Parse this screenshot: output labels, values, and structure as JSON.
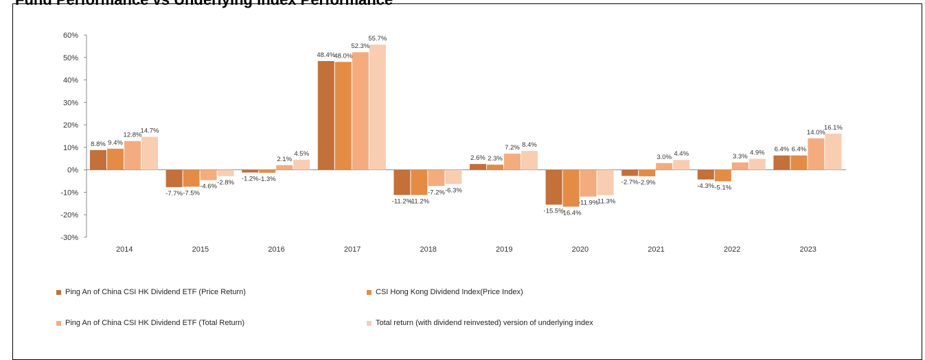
{
  "page": {
    "title": "Fund Performance vs Underlying Index Performance"
  },
  "chart_data": {
    "type": "bar",
    "categories": [
      "2014",
      "2015",
      "2016",
      "2017",
      "2018",
      "2019",
      "2020",
      "2021",
      "2022",
      "2023"
    ],
    "series": [
      {
        "name": "Ping An of China CSI HK Dividend ETF (Price Return)",
        "color": "#C4703A",
        "values": [
          8.8,
          -7.7,
          -1.2,
          48.4,
          -11.2,
          2.6,
          -15.5,
          -2.7,
          -4.3,
          6.4
        ]
      },
      {
        "name": "CSI Hong Kong Dividend Index(Price Index)",
        "color": "#E48C46",
        "values": [
          9.4,
          -7.5,
          -1.3,
          48.0,
          -11.2,
          2.3,
          -16.4,
          -2.9,
          -5.1,
          6.4
        ]
      },
      {
        "name": "Ping An of China CSI HK Dividend ETF (Total Return)",
        "color": "#F4AC7E",
        "values": [
          12.8,
          -4.6,
          2.1,
          52.3,
          -7.2,
          7.2,
          -11.9,
          3.0,
          3.3,
          14.0
        ]
      },
      {
        "name": "Total return (with dividend reinvested) version of underlying index",
        "color": "#F9CDB2",
        "values": [
          14.7,
          -2.8,
          4.5,
          55.7,
          -6.3,
          8.4,
          -11.3,
          4.4,
          4.9,
          16.1
        ]
      }
    ],
    "ylim": [
      -30,
      60
    ],
    "yticks": [
      -30,
      -20,
      -10,
      0,
      10,
      20,
      30,
      40,
      50,
      60
    ],
    "value_suffix": "%",
    "xlabel": "",
    "ylabel": "",
    "grid": false,
    "legend_position": "bottom"
  }
}
